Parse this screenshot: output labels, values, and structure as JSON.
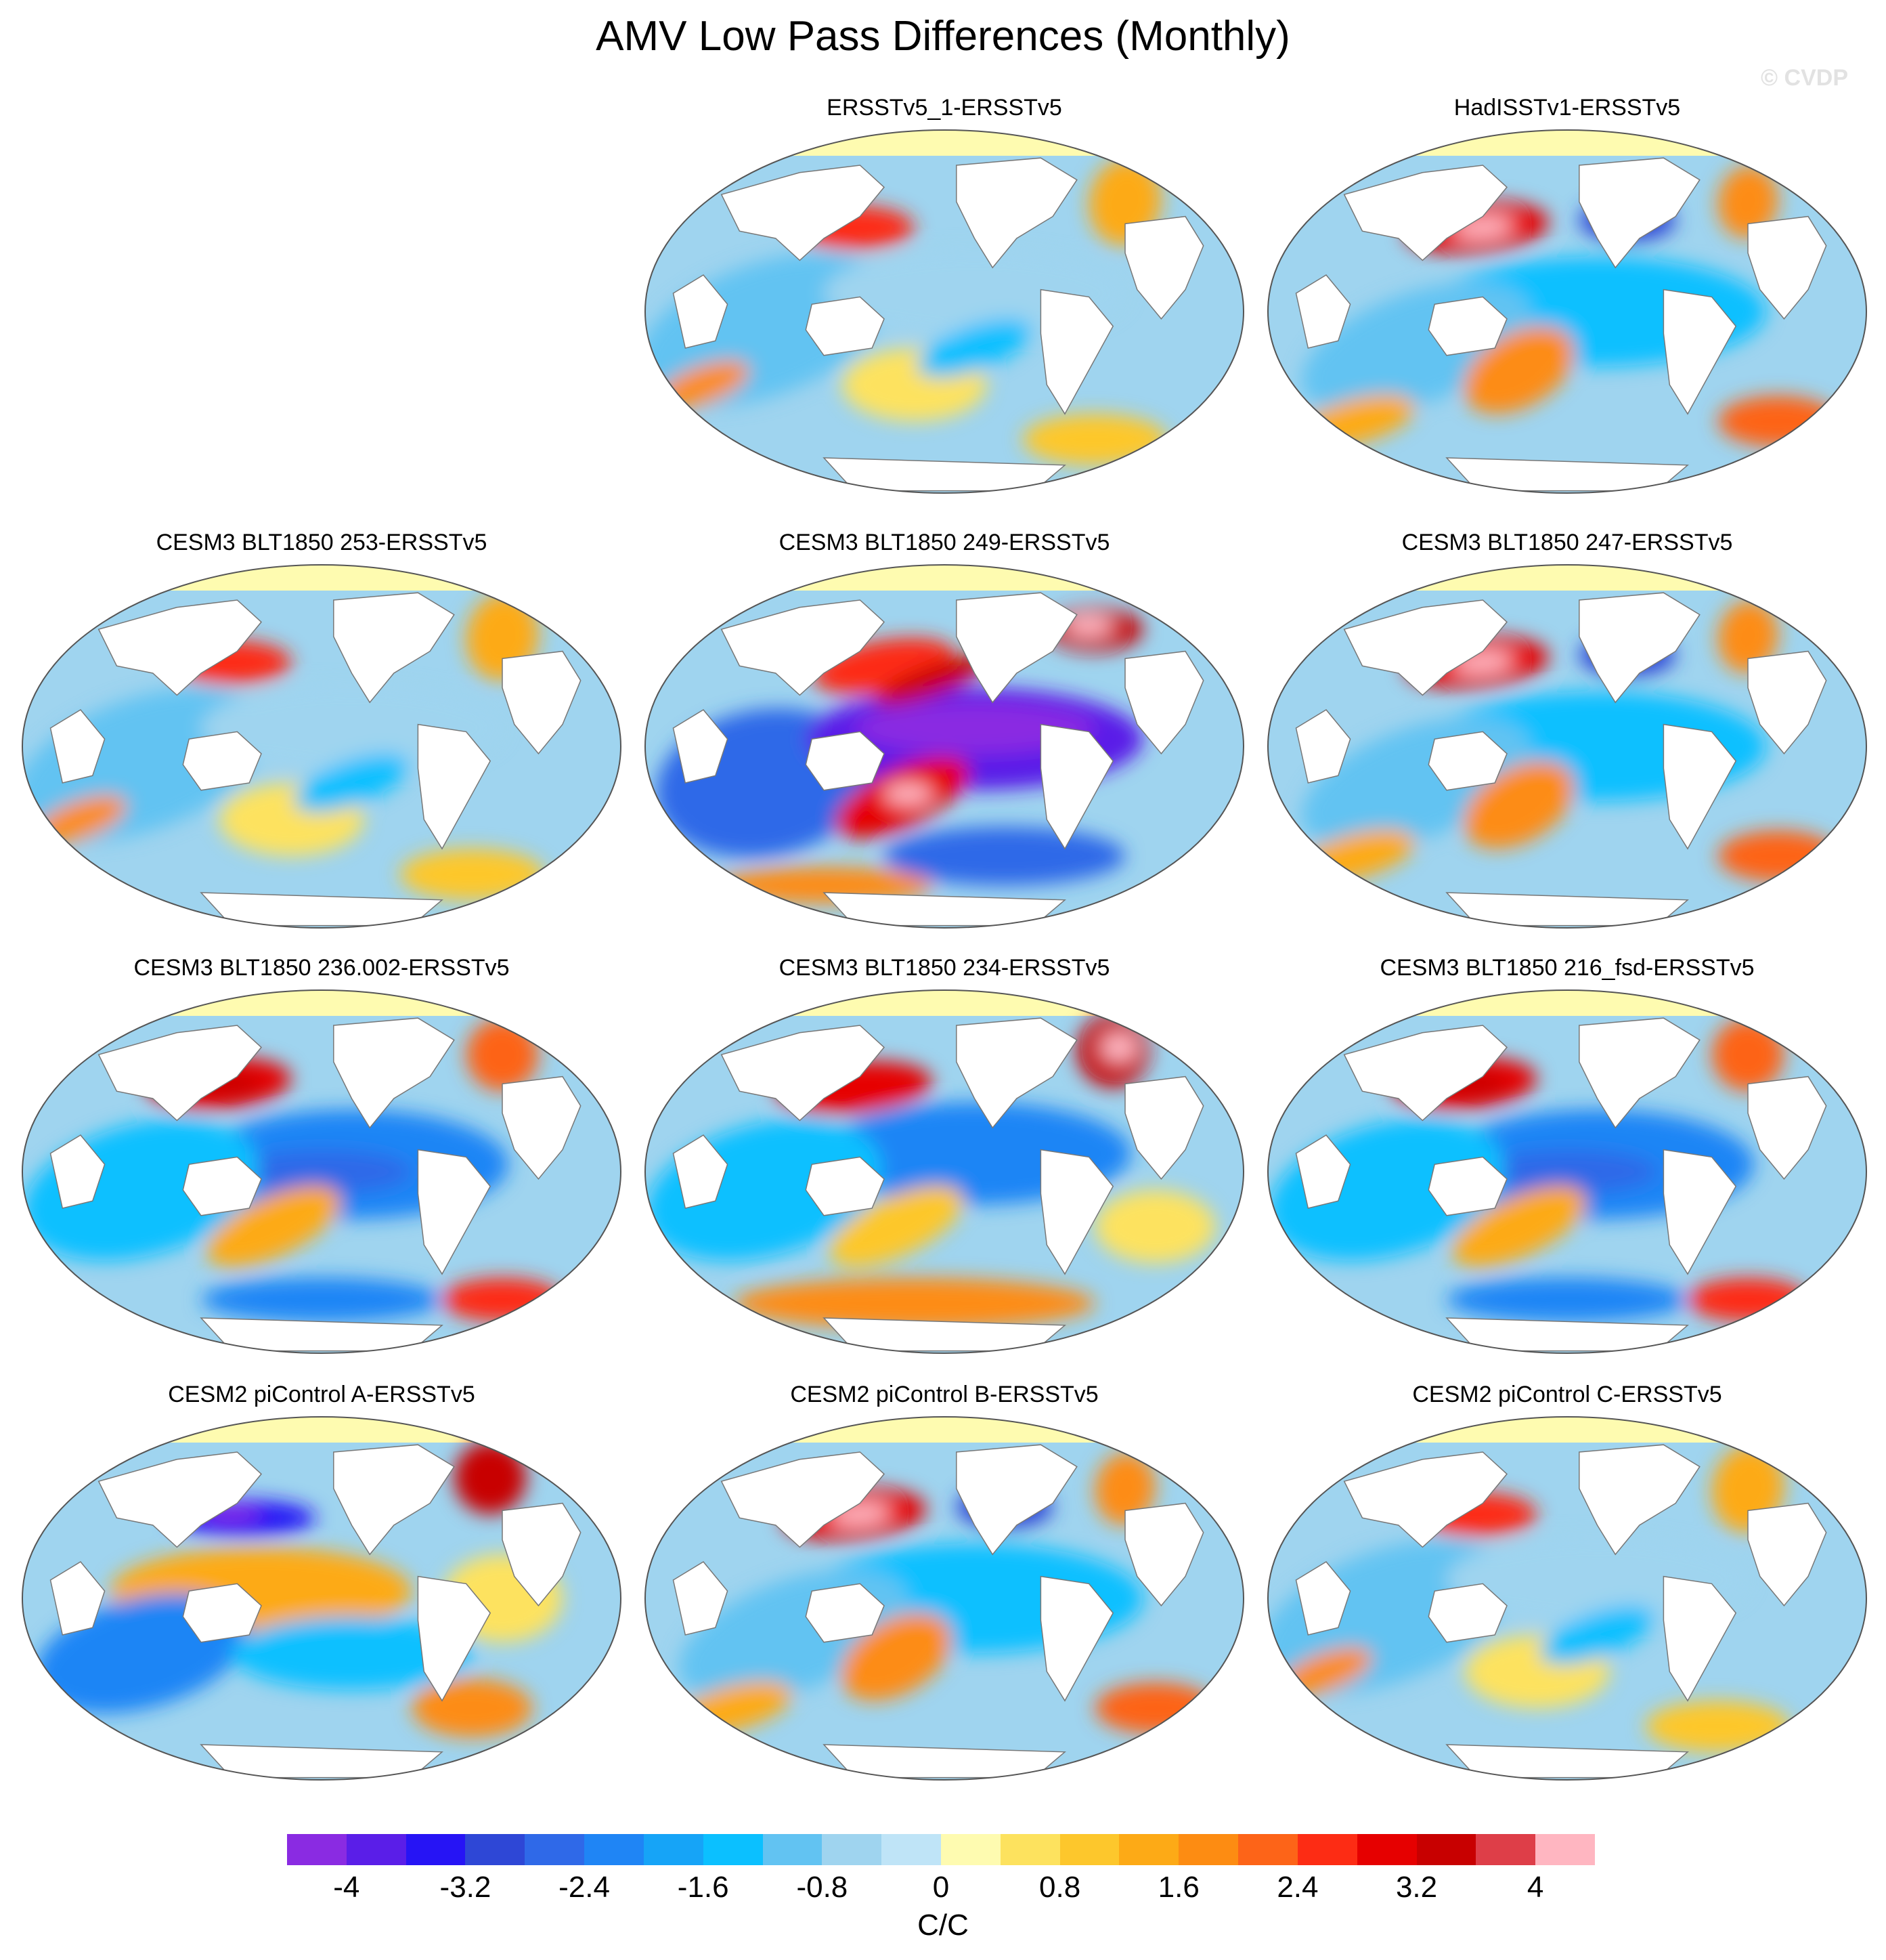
{
  "title": "AMV Low Pass Differences (Monthly)",
  "copyright": "© CVDP",
  "colorbar": {
    "colors": [
      "#8a2be2",
      "#5a1ee8",
      "#2614f5",
      "#2e47d6",
      "#2f69e8",
      "#1f85f5",
      "#16a4f7",
      "#0bc0ff",
      "#62c3f2",
      "#9fd4ef",
      "#bfe4f7",
      "#fefbb0",
      "#fde25e",
      "#fdc72c",
      "#fdaa16",
      "#fd8c12",
      "#fd6418",
      "#fd2c14",
      "#e60000",
      "#c80000",
      "#de3e48",
      "#ffb6c1"
    ],
    "labels": [
      "-4",
      "-3.2",
      "-2.4",
      "-1.6",
      "-0.8",
      "0",
      "0.8",
      "1.6",
      "2.4",
      "3.2",
      "4"
    ],
    "units": "C/C"
  },
  "panels": [
    {
      "title": "ERSSTv5_1-ERSSTv5",
      "pattern": "weak-mixed"
    },
    {
      "title": "HadISSTv1-ERSSTv5",
      "pattern": "npac-warm"
    },
    {
      "title": "CESM3 BLT1850 253-ERSSTv5",
      "pattern": "weak-mixed"
    },
    {
      "title": "CESM3 BLT1850 249-ERSSTv5",
      "pattern": "strong-pac-cold"
    },
    {
      "title": "CESM3 BLT1850 247-ERSSTv5",
      "pattern": "npac-warm"
    },
    {
      "title": "CESM3 BLT1850 236.002-ERSSTv5",
      "pattern": "pac-cold"
    },
    {
      "title": "CESM3 BLT1850 234-ERSSTv5",
      "pattern": "pac-cold-so-warm"
    },
    {
      "title": "CESM3 BLT1850 216_fsd-ERSSTv5",
      "pattern": "pac-cold"
    },
    {
      "title": "CESM2 piControl A-ERSSTv5",
      "pattern": "trop-warm"
    },
    {
      "title": "CESM2 piControl B-ERSSTv5",
      "pattern": "npac-warm"
    },
    {
      "title": "CESM2 piControl C-ERSSTv5",
      "pattern": "weak-mixed"
    }
  ]
}
